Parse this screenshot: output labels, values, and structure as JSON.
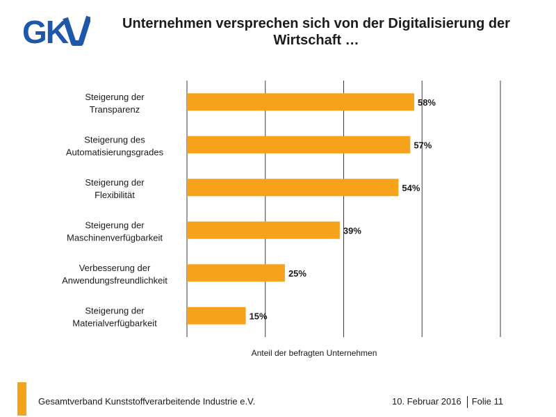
{
  "header": {
    "logo_text": "GKV",
    "title": "Unternehmen versprechen sich von der Digitalisierung der Wirtschaft …"
  },
  "chart_data": {
    "type": "bar",
    "orientation": "horizontal",
    "categories": [
      [
        "Steigerung der",
        "Transparenz"
      ],
      [
        "Steigerung des",
        "Automatisierungsgrades"
      ],
      [
        "Steigerung der",
        "Flexibilität"
      ],
      [
        "Steigerung der",
        "Maschinenverfügbarkeit"
      ],
      [
        "Verbesserung der",
        "Anwendungsfreundlichkeit"
      ],
      [
        "Steigerung der",
        "Materialverfügbarkeit"
      ]
    ],
    "values": [
      58,
      57,
      54,
      39,
      25,
      15
    ],
    "data_labels": [
      "58%",
      "57%",
      "54%",
      "39%",
      "25%",
      "15%"
    ],
    "xlabel": "Anteil der befragten Unternehmen",
    "xlim": [
      0,
      80
    ],
    "grid": true,
    "bar_color": "#f7a21b"
  },
  "footer": {
    "organization": "Gesamtverband Kunststoffverarbeitende Industrie e.V.",
    "date": "10. Februar 2016",
    "slide": "Folie 11"
  },
  "colors": {
    "accent": "#f7a21b",
    "logo_blue": "#1f58a8"
  }
}
